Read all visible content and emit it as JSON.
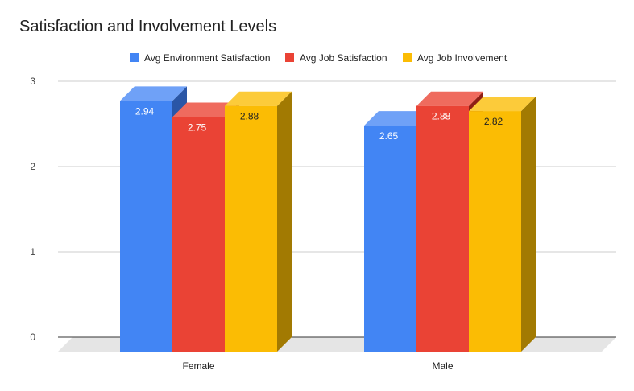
{
  "chart_data": {
    "type": "bar",
    "title": "Satisfaction and Involvement Levels",
    "categories": [
      "Female",
      "Male"
    ],
    "series": [
      {
        "name": "Avg Environment Satisfaction",
        "values": [
          2.94,
          2.65
        ],
        "color": "#4285F4",
        "side_color": "#2A56A6",
        "top_color": "#6FA1F7",
        "label_color": "#ffffff"
      },
      {
        "name": "Avg Job Satisfaction",
        "values": [
          2.75,
          2.88
        ],
        "color": "#EA4335",
        "side_color": "#8E1F15",
        "top_color": "#EF6B5E",
        "label_color": "#ffffff"
      },
      {
        "name": "Avg Job Involvement",
        "values": [
          2.88,
          2.82
        ],
        "color": "#FBBC04",
        "side_color": "#A27A02",
        "top_color": "#FCCB3A",
        "label_color": "#222222"
      }
    ],
    "yticks": [
      "0",
      "1",
      "2",
      "3"
    ],
    "ylim": [
      0,
      3
    ],
    "grid": true,
    "legend_position": "top",
    "style": "3d"
  }
}
